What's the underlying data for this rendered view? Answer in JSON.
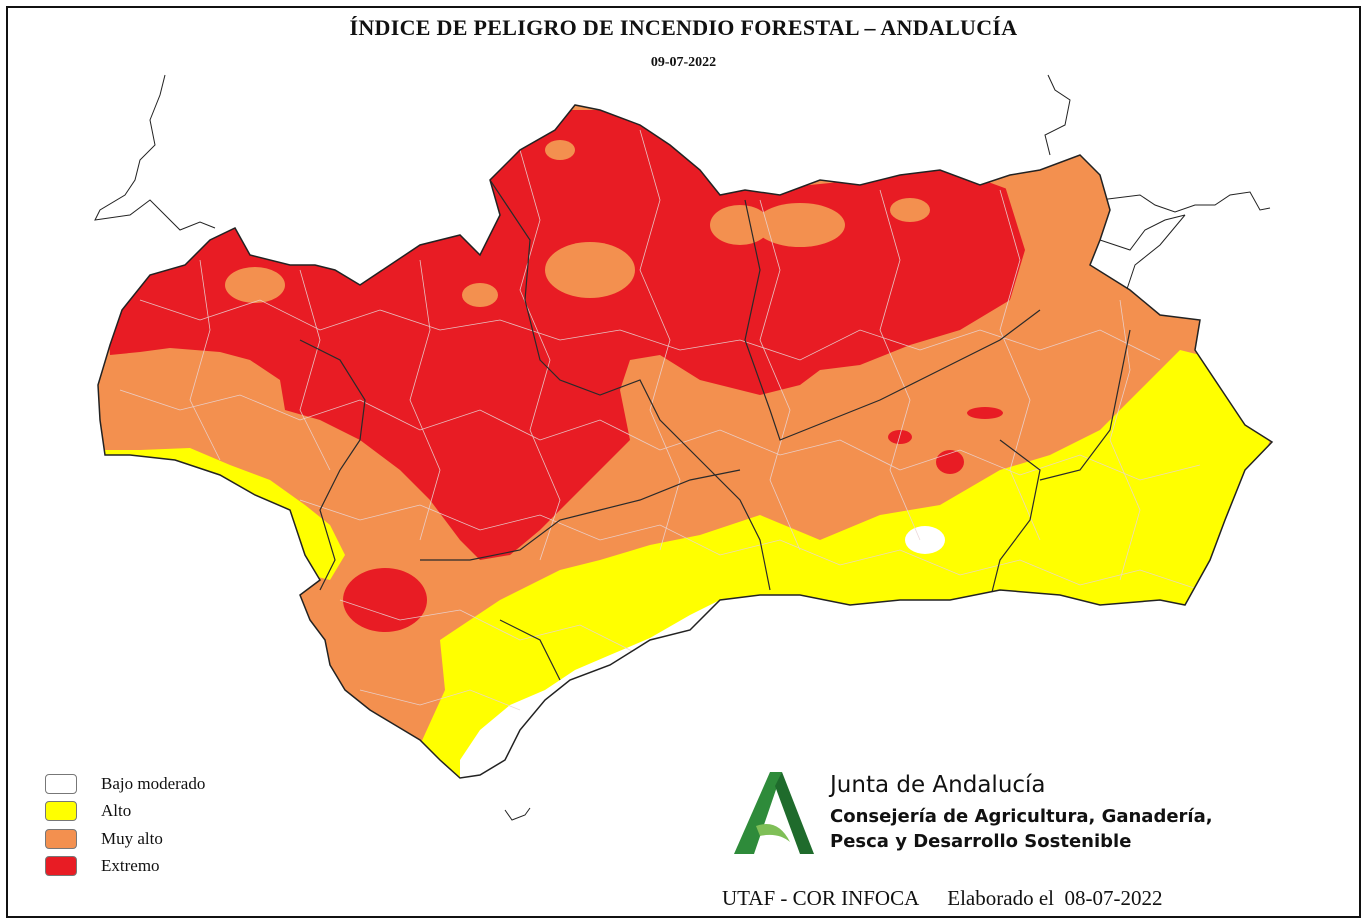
{
  "title": "ÍNDICE DE PELIGRO DE INCENDIO FORESTAL – ANDALUCÍA",
  "date": "09-07-2022",
  "legend": [
    {
      "label": "Bajo moderado",
      "color": "#ffffff"
    },
    {
      "label": "Alto",
      "color": "#ffff00"
    },
    {
      "label": "Muy alto",
      "color": "#f3904f"
    },
    {
      "label": "Extremo",
      "color": "#e81c24"
    }
  ],
  "brand": {
    "name": "Junta de Andalucía",
    "sub_line1": "Consejería de Agricultura, Ganadería,",
    "sub_line2": "Pesca y Desarrollo Sostenible",
    "logo_color": "#2e8b3a"
  },
  "footer": {
    "source": "UTAF - COR INFOCA",
    "elaborated": "Elaborado el  08-07-2022"
  }
}
